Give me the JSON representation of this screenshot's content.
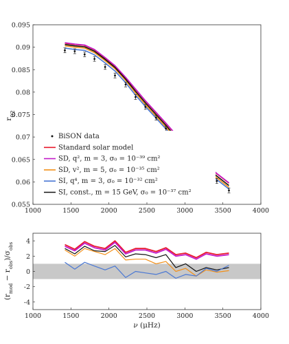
{
  "chart_data": [
    {
      "type": "line",
      "xlim": [
        1000,
        4000
      ],
      "ylim": [
        0.055,
        0.095
      ],
      "x_ticks": [
        "1000",
        "1500",
        "2000",
        "2500",
        "3000",
        "3500",
        "4000"
      ],
      "y_ticks": [
        "0.055",
        "0.06",
        "0.065",
        "0.07",
        "0.075",
        "0.08",
        "0.085",
        "0.09",
        "0.095"
      ],
      "ylabel": "r02",
      "x": [
        1420,
        1550,
        1680,
        1810,
        1950,
        2080,
        2220,
        2350,
        2480,
        2620,
        2750,
        2880,
        3010,
        3150,
        3280,
        3420,
        3580
      ],
      "observed": {
        "name": "BiSON data",
        "values": [
          0.0893,
          0.0891,
          0.0884,
          0.0874,
          0.0856,
          0.0837,
          0.0817,
          0.0789,
          0.0767,
          0.0743,
          0.0719,
          0.0696,
          0.0674,
          0.0651,
          0.0623,
          0.0602,
          0.0581
        ]
      },
      "series": [
        {
          "name": "Standard solar model",
          "color": "#e8192c",
          "values": [
            0.0909,
            0.0906,
            0.0904,
            0.0894,
            0.0876,
            0.0858,
            0.0832,
            0.0806,
            0.078,
            0.0754,
            0.073,
            0.0705,
            0.0683,
            0.0661,
            0.0638,
            0.0618,
            0.0597
          ]
        },
        {
          "name": "SD, q², m = 3, σ₀ = 10⁻³⁹ cm²",
          "color": "#c31cc9",
          "values": [
            0.091,
            0.0907,
            0.0905,
            0.0895,
            0.0877,
            0.0859,
            0.0833,
            0.0807,
            0.0781,
            0.0755,
            0.0731,
            0.0706,
            0.0684,
            0.0662,
            0.0639,
            0.0619,
            0.0598
          ]
        },
        {
          "name": "SD, v², m = 5, σ₀ = 10⁻³⁵ cm²",
          "color": "#f39019",
          "values": [
            0.0903,
            0.09,
            0.0898,
            0.0888,
            0.087,
            0.0852,
            0.0826,
            0.0798,
            0.0772,
            0.0746,
            0.0722,
            0.0696,
            0.0674,
            0.0652,
            0.0629,
            0.0609,
            0.0588
          ]
        },
        {
          "name": "SI, q⁴, m = 3, σ₀ = 10⁻³² cm²",
          "color": "#4a78d4",
          "values": [
            0.0898,
            0.0895,
            0.0893,
            0.0883,
            0.0865,
            0.0847,
            0.0821,
            0.0793,
            0.0768,
            0.0742,
            0.0718,
            0.0692,
            0.067,
            0.0648,
            0.0625,
            0.0605,
            0.0584
          ]
        },
        {
          "name": "SI, const., m = 15 GeV, σ₀ = 10⁻³⁷ cm²",
          "color": "#111111",
          "values": [
            0.0906,
            0.0903,
            0.0901,
            0.0891,
            0.0873,
            0.0855,
            0.0829,
            0.0802,
            0.0776,
            0.075,
            0.0726,
            0.07,
            0.0678,
            0.0656,
            0.0633,
            0.0613,
            0.0592
          ]
        }
      ],
      "legend": {
        "placement": "bottom-left",
        "entries": [
          {
            "text": "BiSON data"
          },
          {
            "text": "Standard solar model"
          },
          {
            "text": "SD, q², m = 3, σ₀ = 10⁻³⁹ cm²"
          },
          {
            "text": "SD, v², m = 5, σ₀ = 10⁻³⁵ cm²"
          },
          {
            "text": "SI, q⁴, m = 3, σ₀ = 10⁻³² cm²"
          },
          {
            "text": "SI, const., m = 15 GeV, σ₀ = 10⁻³⁷ cm²"
          }
        ]
      }
    },
    {
      "type": "line",
      "xlim": [
        1000,
        4000
      ],
      "ylim": [
        -5,
        5
      ],
      "x_ticks": [
        "1000",
        "1500",
        "2000",
        "2500",
        "3000",
        "3500",
        "4000"
      ],
      "y_ticks": [
        "-4",
        "-2",
        "0",
        "2",
        "4"
      ],
      "xlabel": "ν (μHz)",
      "ylabel": "(r_mod − r_obs)/σ_obs",
      "band": [
        -1,
        1
      ],
      "band_color": "#c8c8c8",
      "x": [
        1420,
        1550,
        1680,
        1810,
        1950,
        2080,
        2220,
        2350,
        2480,
        2620,
        2750,
        2880,
        3010,
        3150,
        3280,
        3420,
        3580
      ],
      "series": [
        {
          "name": "Standard solar model",
          "color": "#e8192c",
          "values": [
            3.5,
            2.9,
            3.9,
            3.3,
            3.0,
            4.0,
            2.5,
            3.0,
            3.0,
            2.6,
            3.1,
            2.2,
            2.4,
            1.8,
            2.5,
            2.2,
            2.4
          ]
        },
        {
          "name": "SD, q², m = 3, σ₀ = 10⁻³⁹ cm²",
          "color": "#c31cc9",
          "values": [
            3.3,
            2.7,
            3.7,
            3.1,
            2.8,
            3.8,
            2.3,
            2.8,
            2.8,
            2.4,
            2.9,
            2.0,
            2.2,
            1.6,
            2.3,
            2.0,
            2.2
          ]
        },
        {
          "name": "SI, const., m = 15 GeV, σ₀ = 10⁻³⁷ cm²",
          "color": "#111111",
          "values": [
            3.0,
            2.3,
            3.3,
            2.7,
            2.6,
            3.4,
            1.9,
            2.3,
            2.2,
            1.8,
            2.2,
            0.5,
            1.0,
            0.0,
            0.5,
            0.2,
            0.5
          ]
        },
        {
          "name": "SD, v², m = 5, σ₀ = 10⁻³⁵ cm²",
          "color": "#f39019",
          "values": [
            2.8,
            2.0,
            3.0,
            2.6,
            2.2,
            3.0,
            1.5,
            1.6,
            1.6,
            1.0,
            1.3,
            0.0,
            0.4,
            -0.6,
            0.2,
            -0.1,
            0.1
          ]
        },
        {
          "name": "SI, q⁴, m = 3, σ₀ = 10⁻³² cm²",
          "color": "#4a78d4",
          "values": [
            1.2,
            0.3,
            1.2,
            0.7,
            0.2,
            0.7,
            -0.8,
            0.0,
            -0.2,
            -0.4,
            0.0,
            -0.9,
            -0.4,
            -0.6,
            0.4,
            0.0,
            0.8
          ]
        }
      ]
    }
  ]
}
